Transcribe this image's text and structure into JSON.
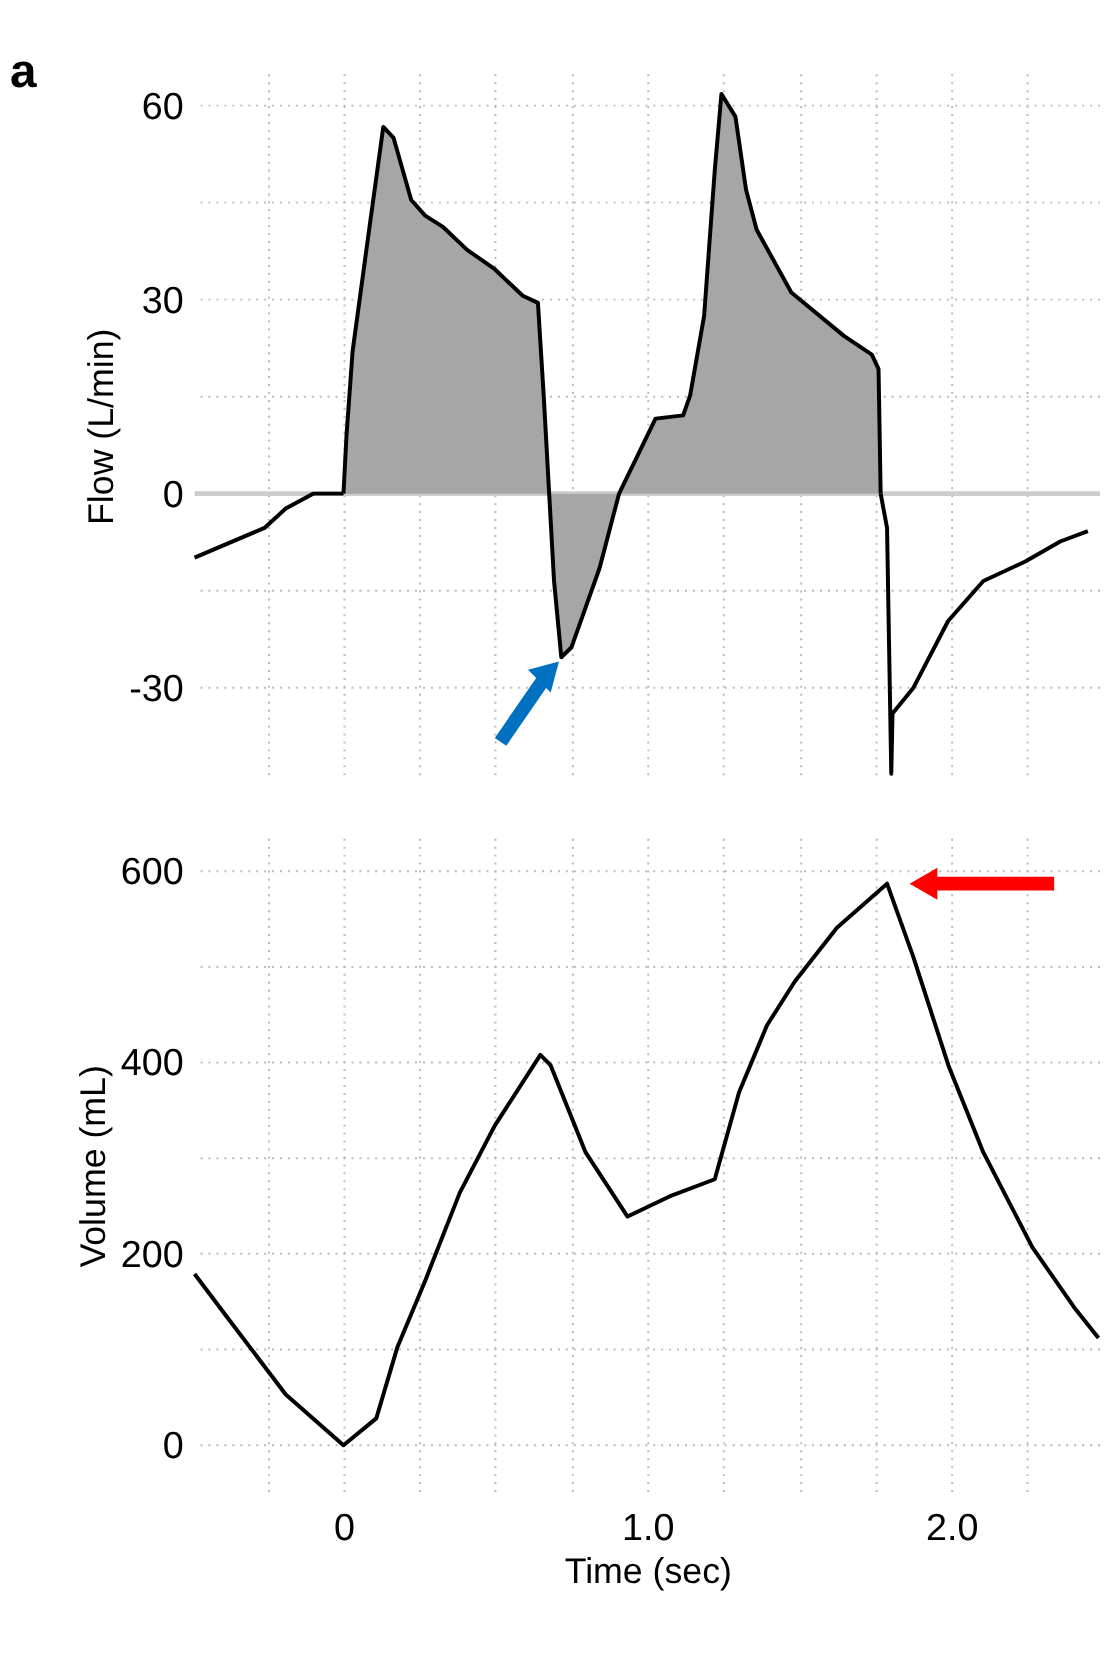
{
  "chart_data": [
    {
      "type": "line",
      "ylabel": "Flow (L/min)",
      "annotations": [
        "a"
      ],
      "xlim": [
        -0.49,
        2.49
      ],
      "ylim": [
        -44,
        65
      ],
      "xticks": [
        {
          "value": -0.25,
          "label": null
        },
        {
          "value": 0,
          "label": null
        },
        {
          "value": 0.25,
          "label": null
        },
        {
          "value": 0.5,
          "label": null
        },
        {
          "value": 0.75,
          "label": null
        },
        {
          "value": 1,
          "label": null
        },
        {
          "value": 1.25,
          "label": null
        },
        {
          "value": 1.5,
          "label": null
        },
        {
          "value": 1.75,
          "label": null
        },
        {
          "value": 2,
          "label": null
        },
        {
          "value": 2.25,
          "label": null
        }
      ],
      "yticks": [
        -30,
        {
          "value": -15,
          "label": null
        },
        0,
        {
          "value": 15,
          "label": null
        },
        30,
        {
          "value": 45,
          "label": null
        },
        60
      ],
      "tick_labels": "y",
      "grid": true,
      "line_style": "solid",
      "ref_lines": [
        {
          "axis": "y",
          "value": 0,
          "color": "#cccccc"
        }
      ],
      "series": [
        {
          "color": "#000000",
          "x": [
            -0.49,
            -0.26,
            -0.19,
            -0.1,
            0
          ],
          "values": [
            -9.9,
            -5.3,
            -2.3,
            0,
            0
          ]
        },
        {
          "type": "area",
          "color": "#a6a6a6",
          "x": [
            0,
            0.01,
            0.03,
            0.085,
            0.131,
            0.165,
            0.223,
            0.269,
            0.326,
            0.407,
            0.498,
            0.59,
            0.64,
            0.659,
            0.677,
            0.693,
            0.717,
            0.75,
            0.843,
            0.907,
            0.958,
            1.027,
            1.118,
            1.141,
            1.187,
            1.222,
            1.244,
            1.29,
            1.325,
            1.36,
            1.474,
            1.647,
            1.739,
            1.761,
            1.768
          ],
          "values": [
            0,
            9,
            22,
            41,
            56.7,
            55,
            45.4,
            43,
            41.3,
            37.7,
            34.7,
            30.6,
            29.5,
            15.2,
            0,
            -13.5,
            -25.3,
            -23.8,
            -11.5,
            0,
            4.9,
            11.6,
            12.1,
            15.2,
            27.5,
            50,
            61.8,
            58.3,
            47,
            40.8,
            31.1,
            24.4,
            21.5,
            19.3,
            0
          ]
        },
        {
          "color": "#000000",
          "x": [
            1.768,
            1.789,
            1.803,
            1.807,
            1.876,
            1.99,
            2.106,
            2.244,
            2.359,
            2.45
          ],
          "values": [
            0,
            -5.3,
            -43.3,
            -34,
            -30,
            -19.7,
            -13.5,
            -10.5,
            -7.4,
            -5.8
          ]
        }
      ]
    },
    {
      "type": "line",
      "xlabel": "Time (sec)",
      "ylabel": "Volume (mL)",
      "xlim": [
        -0.49,
        2.49
      ],
      "ylim": [
        -50,
        635
      ],
      "xticks": [
        {
          "value": -0.25,
          "label": null
        },
        0,
        {
          "value": 0.25,
          "label": null
        },
        {
          "value": 0.5,
          "label": null
        },
        {
          "value": 0.75,
          "label": null
        },
        {
          "value": 1,
          "label": "1.0"
        },
        {
          "value": 1.25,
          "label": null
        },
        {
          "value": 1.5,
          "label": null
        },
        {
          "value": 1.75,
          "label": null
        },
        {
          "value": 2,
          "label": "2.0"
        },
        {
          "value": 2.25,
          "label": null
        }
      ],
      "yticks": [
        0,
        {
          "value": 100,
          "label": null
        },
        200,
        {
          "value": 300,
          "label": null
        },
        400,
        {
          "value": 500,
          "label": null
        },
        600
      ],
      "grid": true,
      "line_style": "solid",
      "series": [
        {
          "color": "#000000",
          "x": [
            -0.49,
            -0.374,
            -0.19,
            0,
            0.108,
            0.177,
            0.269,
            0.383,
            0.498,
            0.648,
            0.682,
            0.797,
            0.935,
            1.073,
            1.222,
            1.302,
            1.394,
            1.486,
            1.624,
            1.789,
            1.876,
            1.991,
            2.106,
            2.267,
            2.405,
            2.485
          ],
          "values": [
            179,
            130,
            53,
            0,
            28,
            102,
            172,
            264,
            334,
            408,
            397,
            306,
            239,
            260,
            278,
            369,
            439,
            485,
            541,
            587,
            510,
            397,
            306,
            207,
            144,
            112
          ]
        }
      ]
    }
  ]
}
